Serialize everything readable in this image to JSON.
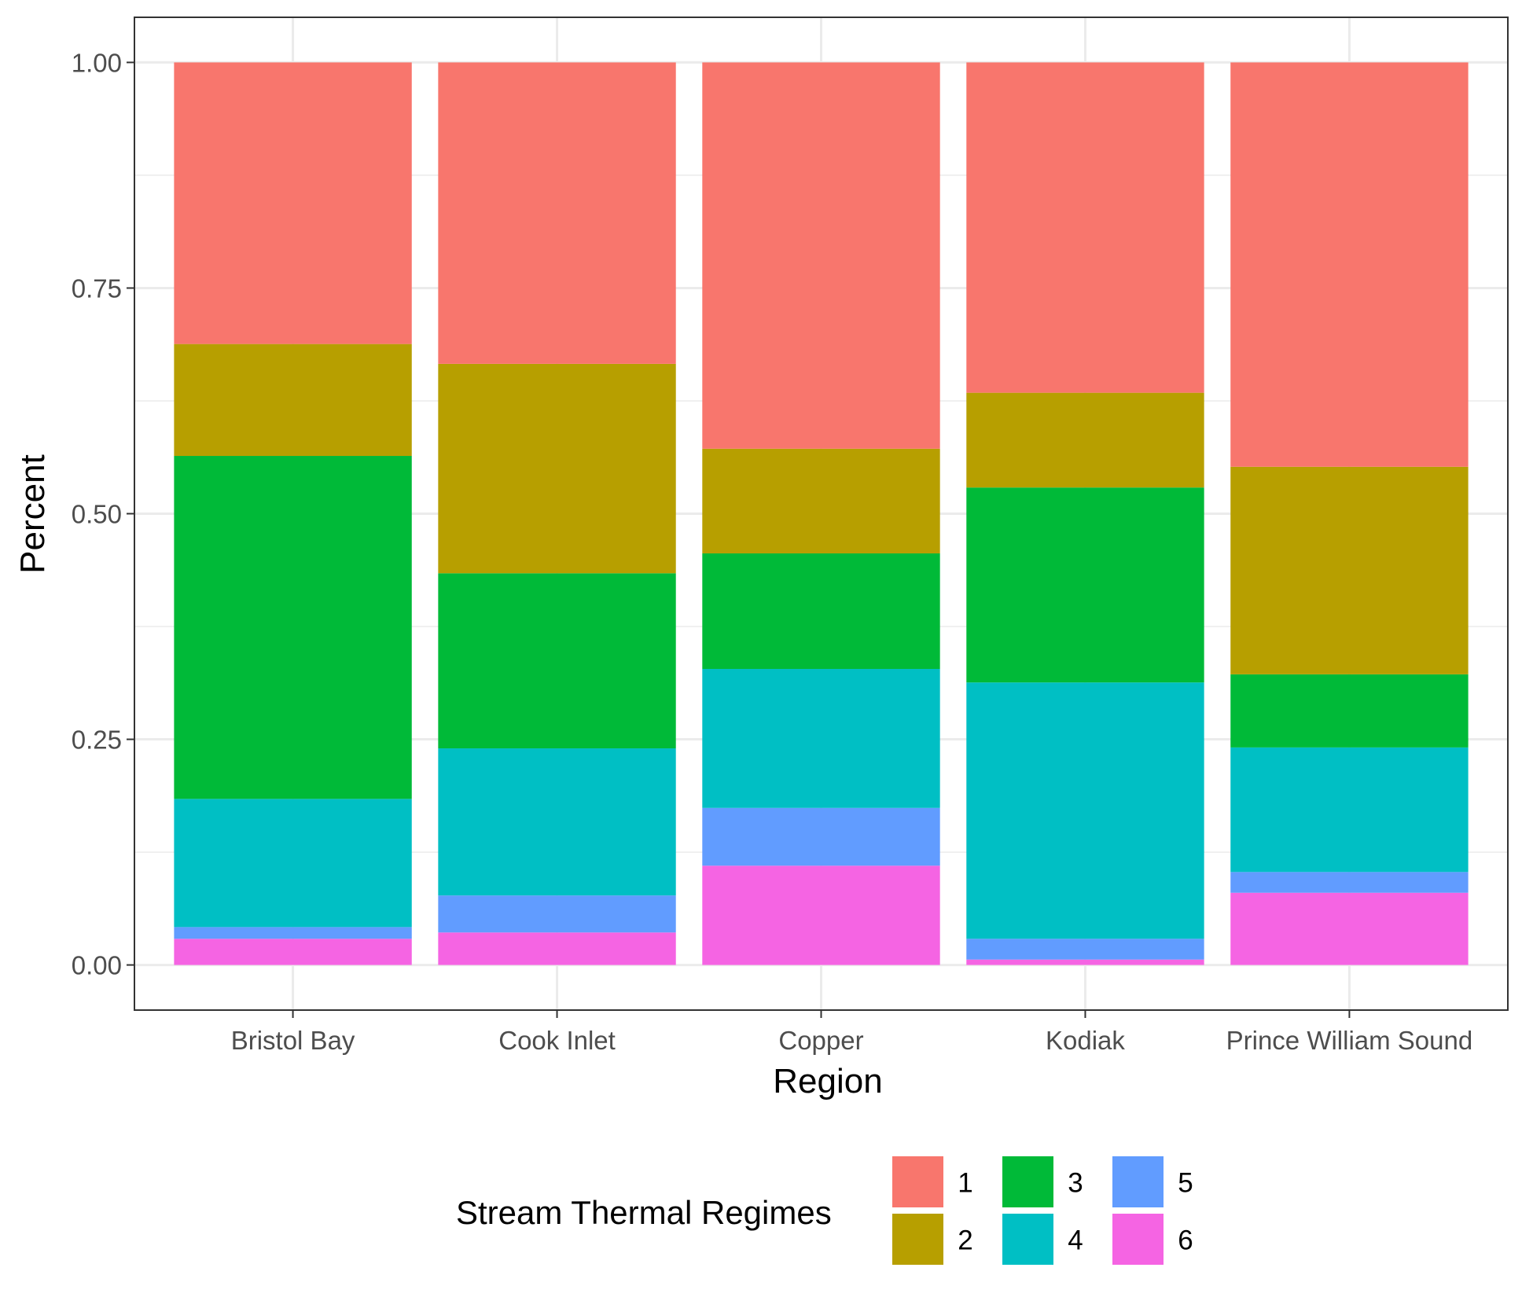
{
  "chart_data": {
    "type": "bar",
    "stacked": true,
    "categories": [
      "Bristol Bay",
      "Cook Inlet",
      "Copper",
      "Kodiak",
      "Prince William Sound"
    ],
    "series": [
      {
        "name": "1",
        "color": "#F8766D",
        "values": [
          0.312,
          0.334,
          0.428,
          0.366,
          0.448
        ]
      },
      {
        "name": "2",
        "color": "#B79F00",
        "values": [
          0.124,
          0.232,
          0.116,
          0.105,
          0.23
        ]
      },
      {
        "name": "3",
        "color": "#00BA38",
        "values": [
          0.38,
          0.194,
          0.128,
          0.216,
          0.081
        ]
      },
      {
        "name": "4",
        "color": "#00BFC4",
        "values": [
          0.142,
          0.163,
          0.154,
          0.284,
          0.138
        ]
      },
      {
        "name": "5",
        "color": "#619CFF",
        "values": [
          0.013,
          0.041,
          0.064,
          0.023,
          0.023
        ]
      },
      {
        "name": "6",
        "color": "#F564E3",
        "values": [
          0.029,
          0.036,
          0.11,
          0.006,
          0.08
        ]
      }
    ],
    "xlabel": "Region",
    "ylabel": "Percent",
    "ylim": [
      -0.05,
      1.05
    ],
    "yticks": [
      "0.00",
      "0.25",
      "0.50",
      "0.75",
      "1.00"
    ],
    "grid": true,
    "legend": {
      "title": "Stream Thermal Regimes",
      "position": "bottom"
    }
  }
}
